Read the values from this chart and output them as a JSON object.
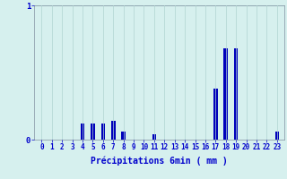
{
  "xlabel": "Précipitations 6min ( mm )",
  "categories": [
    0,
    1,
    2,
    3,
    4,
    5,
    6,
    7,
    8,
    9,
    10,
    11,
    12,
    13,
    14,
    15,
    16,
    17,
    18,
    19,
    20,
    21,
    22,
    23
  ],
  "values": [
    0,
    0,
    0,
    0,
    0.12,
    0.12,
    0.12,
    0.14,
    0.06,
    0,
    0,
    0.04,
    0,
    0,
    0,
    0,
    0,
    0.38,
    0.68,
    0.68,
    0,
    0,
    0,
    0.06
  ],
  "bar_color": "#0000bb",
  "bg_color": "#d6f0ee",
  "grid_color": "#b0d4d0",
  "axis_color": "#8090a0",
  "text_color": "#0000cc",
  "ylim": [
    0,
    1.0
  ],
  "yticks": [
    0,
    1
  ],
  "figsize": [
    3.2,
    2.0
  ],
  "dpi": 100
}
